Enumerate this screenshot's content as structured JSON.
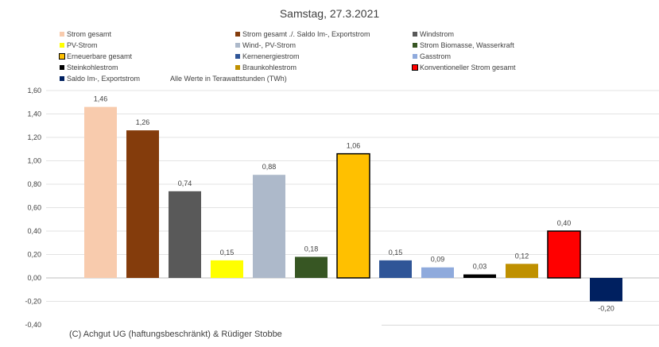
{
  "chart_data": {
    "type": "bar",
    "title": "Samstag, 27.3.2021",
    "note": "Alle Werte in Terawattstunden (TWh)",
    "ylim": [
      -0.4,
      1.6
    ],
    "yticks": [
      "1,60",
      "1,40",
      "1,20",
      "1,00",
      "0,80",
      "0,60",
      "0,40",
      "0,20",
      "0,00",
      "-0,20",
      "-0,40"
    ],
    "grid": true,
    "legend_position": "top",
    "series": [
      {
        "name": "Strom gesamt",
        "value": 1.46,
        "label": "1,46",
        "color": "#f8cbad",
        "border": false
      },
      {
        "name": "Strom gesamt ./. Saldo Im-, Exportstrom",
        "value": 1.26,
        "label": "1,26",
        "color": "#843c0c",
        "border": false
      },
      {
        "name": "Windstrom",
        "value": 0.74,
        "label": "0,74",
        "color": "#595959",
        "border": false
      },
      {
        "name": "PV-Strom",
        "value": 0.15,
        "label": "0,15",
        "color": "#ffff00",
        "border": false
      },
      {
        "name": "Wind-, PV-Strom",
        "value": 0.88,
        "label": "0,88",
        "color": "#adb9ca",
        "border": false
      },
      {
        "name": "Strom Biomasse, Wasserkraft",
        "value": 0.18,
        "label": "0,18",
        "color": "#375623",
        "border": false
      },
      {
        "name": "Erneuerbare gesamt",
        "value": 1.06,
        "label": "1,06",
        "color": "#ffc000",
        "border": true
      },
      {
        "name": "Kernenergiestrom",
        "value": 0.15,
        "label": "0,15",
        "color": "#2f5597",
        "border": false
      },
      {
        "name": "Gasstrom",
        "value": 0.09,
        "label": "0,09",
        "color": "#8faadc",
        "border": false
      },
      {
        "name": "Steinkohlestrom",
        "value": 0.03,
        "label": "0,03",
        "color": "#000000",
        "border": false
      },
      {
        "name": "Braunkohlestrom",
        "value": 0.12,
        "label": "0,12",
        "color": "#bf9000",
        "border": false
      },
      {
        "name": "Konventioneller Strom gesamt",
        "value": 0.4,
        "label": "0,40",
        "color": "#ff0000",
        "border": true
      },
      {
        "name": "Saldo Im-, Exportstrom",
        "value": -0.2,
        "label": "-0,20",
        "color": "#002060",
        "border": false
      }
    ]
  },
  "footer": {
    "copyright": "(C) Achgut UG (haftungsbeschränkt) & Rüdiger Stobbe"
  }
}
